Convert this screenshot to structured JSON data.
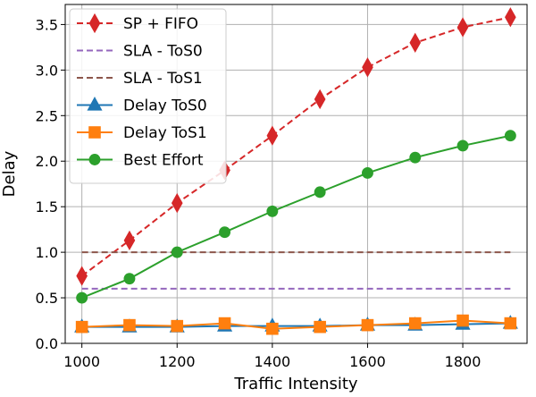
{
  "chart_data": {
    "type": "line",
    "title": "",
    "xlabel": "Traffic Intensity",
    "ylabel": "Delay",
    "xlim": [
      965,
      1935
    ],
    "ylim": [
      0.0,
      3.72
    ],
    "x_ticks": [
      1000,
      1200,
      1400,
      1600,
      1800
    ],
    "y_ticks": [
      0.0,
      0.5,
      1.0,
      1.5,
      2.0,
      2.5,
      3.0,
      3.5
    ],
    "x_tick_labels": [
      "1000",
      "1200",
      "1400",
      "1600",
      "1800"
    ],
    "y_tick_labels": [
      "0.0",
      "0.5",
      "1.0",
      "1.5",
      "2.0",
      "2.5",
      "3.0",
      "3.5"
    ],
    "grid": true,
    "legend_position": "upper-left",
    "x": [
      1000,
      1100,
      1200,
      1300,
      1400,
      1500,
      1600,
      1700,
      1800,
      1900
    ],
    "series": [
      {
        "name": "SP + FIFO",
        "color": "#d62728",
        "line": "dashed",
        "marker": "diamond",
        "values": [
          0.74,
          1.13,
          1.54,
          1.9,
          2.28,
          2.68,
          3.03,
          3.3,
          3.47,
          3.58
        ]
      },
      {
        "name": "SLA - ToS0",
        "color": "#9467bd",
        "line": "dashed",
        "marker": "none",
        "values": [
          0.6,
          0.6,
          0.6,
          0.6,
          0.6,
          0.6,
          0.6,
          0.6,
          0.6,
          0.6
        ]
      },
      {
        "name": "SLA - ToS1",
        "color": "#8c564b",
        "line": "dashed",
        "marker": "none",
        "values": [
          1.0,
          1.0,
          1.0,
          1.0,
          1.0,
          1.0,
          1.0,
          1.0,
          1.0,
          1.0
        ]
      },
      {
        "name": "Delay ToS0",
        "color": "#1f77b4",
        "line": "solid",
        "marker": "triangle",
        "values": [
          0.18,
          0.18,
          0.18,
          0.19,
          0.19,
          0.19,
          0.2,
          0.2,
          0.21,
          0.22
        ]
      },
      {
        "name": "Delay ToS1",
        "color": "#ff7f0e",
        "line": "solid",
        "marker": "square",
        "values": [
          0.18,
          0.2,
          0.19,
          0.22,
          0.16,
          0.18,
          0.2,
          0.22,
          0.25,
          0.22
        ]
      },
      {
        "name": "Best Effort",
        "color": "#2ca02c",
        "line": "solid",
        "marker": "circle",
        "values": [
          0.5,
          0.71,
          1.0,
          1.22,
          1.45,
          1.66,
          1.87,
          2.04,
          2.17,
          2.28
        ]
      }
    ]
  }
}
